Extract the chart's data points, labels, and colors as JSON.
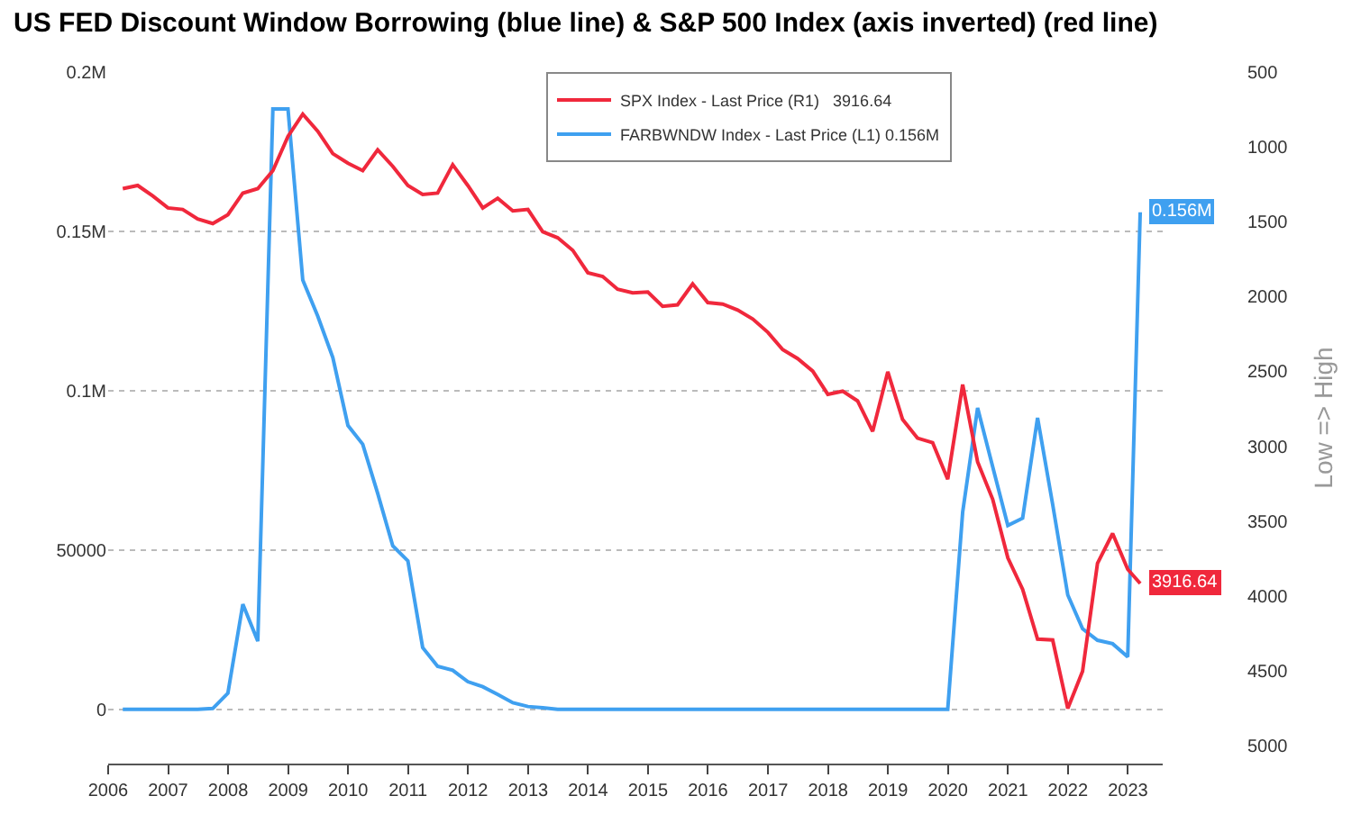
{
  "chart_data": {
    "type": "line",
    "title": "US FED Discount Window Borrowing (blue line) & S&P 500 Index (axis inverted) (red line)",
    "y2label": "Low => High",
    "x": [
      "2006-03-31",
      "2006-06-30",
      "2006-09-30",
      "2006-12-31",
      "2007-03-31",
      "2007-06-30",
      "2007-09-30",
      "2007-12-31",
      "2008-03-31",
      "2008-06-30",
      "2008-09-30",
      "2008-12-31",
      "2009-03-31",
      "2009-06-30",
      "2009-09-30",
      "2009-12-31",
      "2010-03-31",
      "2010-06-30",
      "2010-09-30",
      "2010-12-31",
      "2011-03-31",
      "2011-06-30",
      "2011-09-30",
      "2011-12-31",
      "2012-03-31",
      "2012-06-30",
      "2012-09-30",
      "2012-12-31",
      "2013-03-31",
      "2013-06-30",
      "2013-09-30",
      "2013-12-31",
      "2014-03-31",
      "2014-06-30",
      "2014-09-30",
      "2014-12-31",
      "2015-03-31",
      "2015-06-30",
      "2015-09-30",
      "2015-12-31",
      "2016-03-31",
      "2016-06-30",
      "2016-09-30",
      "2016-12-31",
      "2017-03-31",
      "2017-06-30",
      "2017-09-30",
      "2017-12-31",
      "2018-03-31",
      "2018-06-30",
      "2018-09-30",
      "2018-12-31",
      "2019-03-31",
      "2019-06-30",
      "2019-09-30",
      "2019-12-31",
      "2020-03-31",
      "2020-06-30",
      "2020-09-30",
      "2020-12-31",
      "2021-03-31",
      "2021-06-30",
      "2021-09-30",
      "2021-12-31",
      "2022-03-31",
      "2022-06-30",
      "2022-09-30",
      "2022-12-31",
      "2023-03-17"
    ],
    "series": [
      {
        "name": "SPX Index - Last Price (R1)   3916.64",
        "color": "#f0283c",
        "axis": "y2",
        "values": [
          1279,
          1258,
          1328,
          1408,
          1418,
          1482,
          1512,
          1453,
          1309,
          1279,
          1159,
          930,
          781,
          895,
          1045,
          1109,
          1159,
          1020,
          1130,
          1258,
          1318,
          1309,
          1119,
          1258,
          1408,
          1343,
          1428,
          1418,
          1567,
          1607,
          1691,
          1841,
          1866,
          1951,
          1975,
          1970,
          2065,
          2055,
          1915,
          2040,
          2050,
          2090,
          2150,
          2239,
          2354,
          2414,
          2498,
          2653,
          2632,
          2697,
          2901,
          2503,
          2821,
          2946,
          2976,
          3220,
          2588,
          3105,
          3355,
          3746,
          3956,
          4289,
          4294,
          4752,
          4504,
          3782,
          3583,
          3822,
          3916.64
        ],
        "value_labels": [
          null,
          null,
          null,
          null,
          null,
          null,
          null,
          null,
          null,
          null,
          null,
          null,
          null,
          null,
          null,
          null,
          null,
          null,
          null,
          null,
          null,
          null,
          null,
          null,
          null,
          null,
          null,
          null,
          null,
          null,
          null,
          null,
          null,
          null,
          null,
          null,
          null,
          null,
          null,
          null,
          null,
          null,
          null,
          null,
          null,
          null,
          null,
          null,
          null,
          null,
          null,
          null,
          null,
          null,
          null,
          null,
          null,
          null,
          null,
          null,
          null,
          null,
          null,
          null,
          null,
          null,
          null,
          null,
          "3916.64"
        ]
      },
      {
        "name": "FARBWNDW Index - Last Price (L1) 0.156M",
        "color": "#3fa0f0",
        "values": [
          0,
          0,
          0,
          0,
          0,
          0,
          300,
          5100,
          33000,
          21400,
          188400,
          188400,
          134700,
          123400,
          110400,
          89100,
          83200,
          67800,
          51300,
          46600,
          19400,
          13500,
          12300,
          8700,
          7100,
          4700,
          2100,
          900,
          500,
          0,
          0,
          0,
          0,
          0,
          0,
          0,
          0,
          0,
          0,
          0,
          0,
          0,
          0,
          0,
          0,
          0,
          0,
          0,
          0,
          0,
          0,
          0,
          0,
          0,
          0,
          0,
          61900,
          94600,
          76100,
          57700,
          60000,
          91500,
          64300,
          35900,
          25300,
          21700,
          20600,
          16500,
          156000
        ],
        "value_labels": [
          null,
          null,
          null,
          null,
          null,
          null,
          null,
          null,
          null,
          null,
          null,
          null,
          null,
          null,
          null,
          null,
          null,
          null,
          null,
          null,
          null,
          null,
          null,
          null,
          null,
          null,
          null,
          null,
          null,
          null,
          null,
          null,
          null,
          null,
          null,
          null,
          null,
          null,
          null,
          null,
          null,
          null,
          null,
          null,
          null,
          null,
          null,
          null,
          null,
          null,
          null,
          null,
          null,
          null,
          null,
          null,
          null,
          null,
          null,
          null,
          null,
          null,
          null,
          null,
          null,
          null,
          null,
          null,
          "0.156M"
        ]
      }
    ],
    "xlim": [
      "2006-01-01",
      "2023-08-01"
    ],
    "xticks": [
      {
        "value": "2006-01-01",
        "label": "2006"
      },
      {
        "value": "2007-01-01",
        "label": "2007"
      },
      {
        "value": "2008-01-01",
        "label": "2008"
      },
      {
        "value": "2009-01-01",
        "label": "2009"
      },
      {
        "value": "2010-01-01",
        "label": "2010"
      },
      {
        "value": "2011-01-01",
        "label": "2011"
      },
      {
        "value": "2012-01-01",
        "label": "2012"
      },
      {
        "value": "2013-01-01",
        "label": "2013"
      },
      {
        "value": "2014-01-01",
        "label": "2014"
      },
      {
        "value": "2015-01-01",
        "label": "2015"
      },
      {
        "value": "2016-01-01",
        "label": "2016"
      },
      {
        "value": "2017-01-01",
        "label": "2017"
      },
      {
        "value": "2018-01-01",
        "label": "2018"
      },
      {
        "value": "2019-01-01",
        "label": "2019"
      },
      {
        "value": "2020-01-01",
        "label": "2020"
      },
      {
        "value": "2021-01-01",
        "label": "2021"
      },
      {
        "value": "2022-01-01",
        "label": "2022"
      },
      {
        "value": "2023-01-01",
        "label": "2023"
      }
    ],
    "ylim": [
      -17000,
      200000
    ],
    "yticks": [
      0,
      50000,
      {
        "value": 100000,
        "label": "0.1M"
      },
      {
        "value": 150000,
        "label": "0.15M"
      },
      {
        "value": 200000,
        "label": "0.2M"
      }
    ],
    "y2lim": [
      5120,
      500
    ],
    "y2ticks": [
      500,
      1000,
      1500,
      2000,
      2500,
      3000,
      3500,
      4000,
      4500,
      5000
    ],
    "grid": "y",
    "legend": "top right",
    "line_style": "solid",
    "marker": "none"
  }
}
